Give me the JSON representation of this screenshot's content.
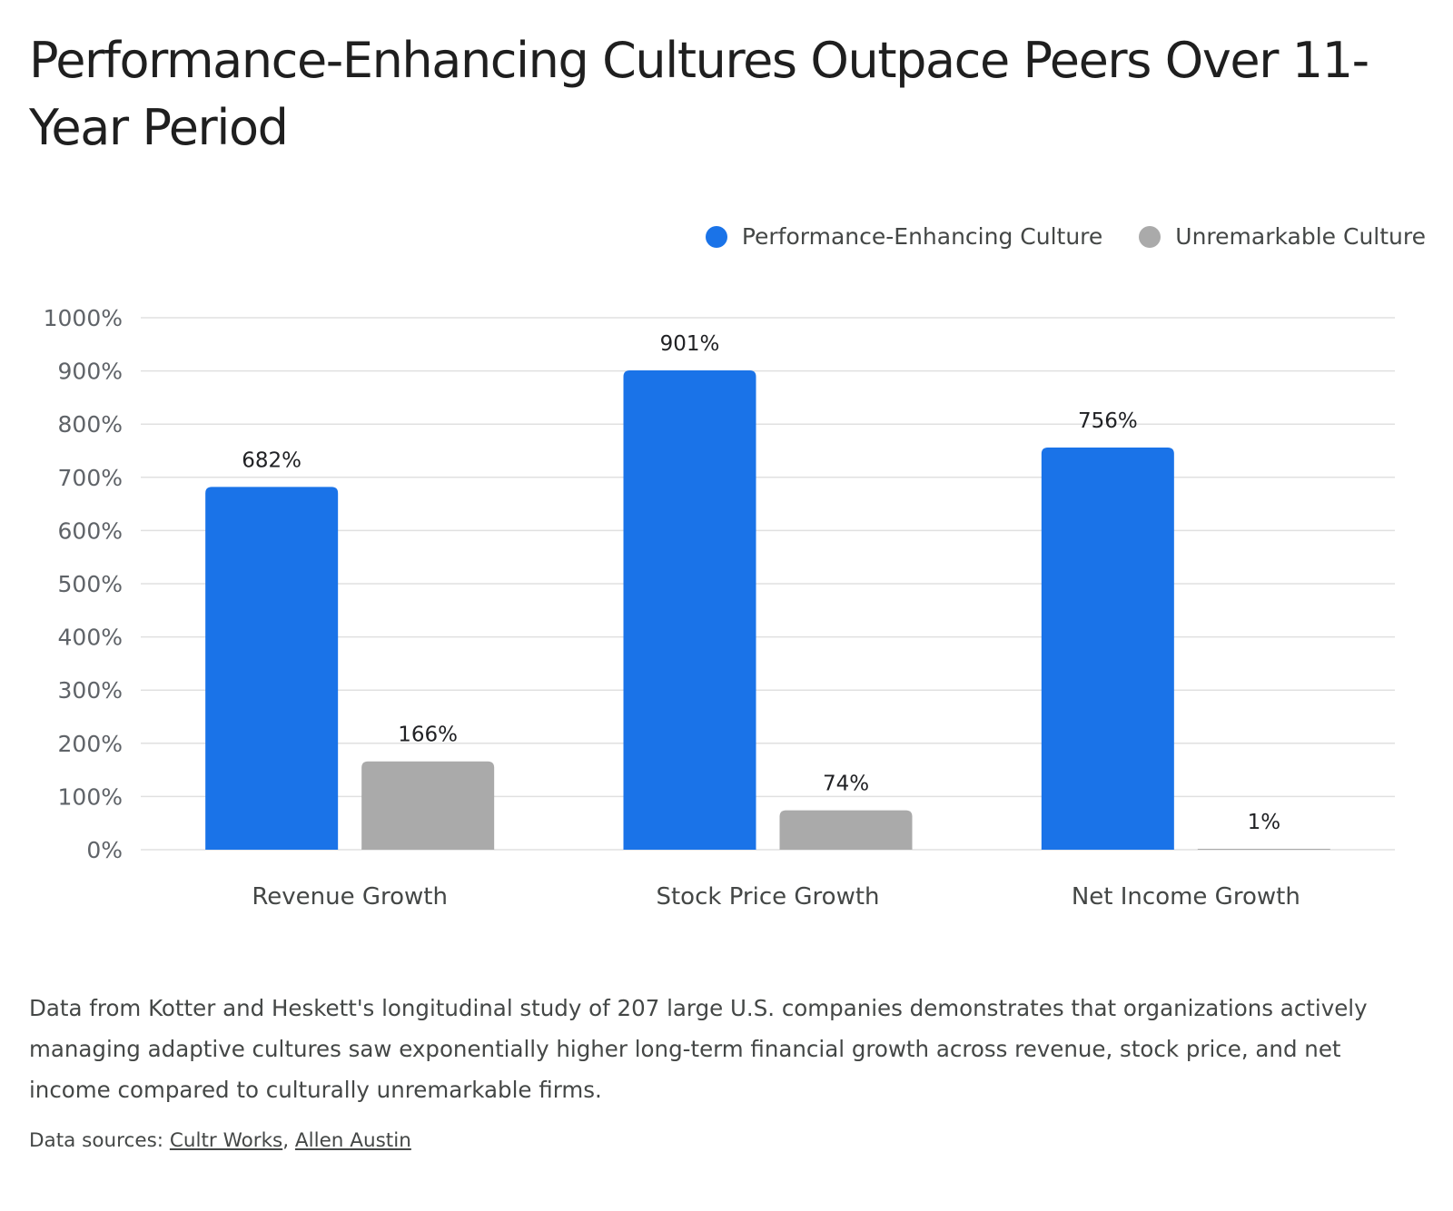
{
  "title": "Performance-Enhancing Cultures Outpace Peers Over 11-Year Period",
  "description": "Data from Kotter and Heskett's longitudinal study of 207 large U.S. companies demonstrates that organizations actively managing adaptive cultures saw exponentially higher long-term financial growth across revenue, stock price, and net income compared to culturally unremarkable firms.",
  "sources": {
    "label": "Data sources:",
    "links": [
      "Cultr Works",
      "Allen Austin"
    ],
    "separator": ","
  },
  "colors": {
    "performance": "#1a73e8",
    "unremarkable": "#aaaaaa",
    "grid": "#e0e0e0",
    "axis_text": "#5f6368"
  },
  "chart_data": {
    "type": "bar",
    "categories": [
      "Revenue Growth",
      "Stock Price Growth",
      "Net Income Growth"
    ],
    "series": [
      {
        "name": "Performance-Enhancing Culture",
        "values": [
          682,
          901,
          756
        ],
        "labels": [
          "682%",
          "901%",
          "756%"
        ],
        "color": "#1a73e8"
      },
      {
        "name": "Unremarkable Culture",
        "values": [
          166,
          74,
          1
        ],
        "labels": [
          "166%",
          "74%",
          "1%"
        ],
        "color": "#aaaaaa"
      }
    ],
    "ylim": [
      0,
      1000
    ],
    "yticks": [
      0,
      100,
      200,
      300,
      400,
      500,
      600,
      700,
      800,
      900,
      1000
    ],
    "ytick_labels": [
      "0%",
      "100%",
      "200%",
      "300%",
      "400%",
      "500%",
      "600%",
      "700%",
      "800%",
      "900%",
      "1000%"
    ],
    "grid": true,
    "legend_position": "top-right"
  }
}
